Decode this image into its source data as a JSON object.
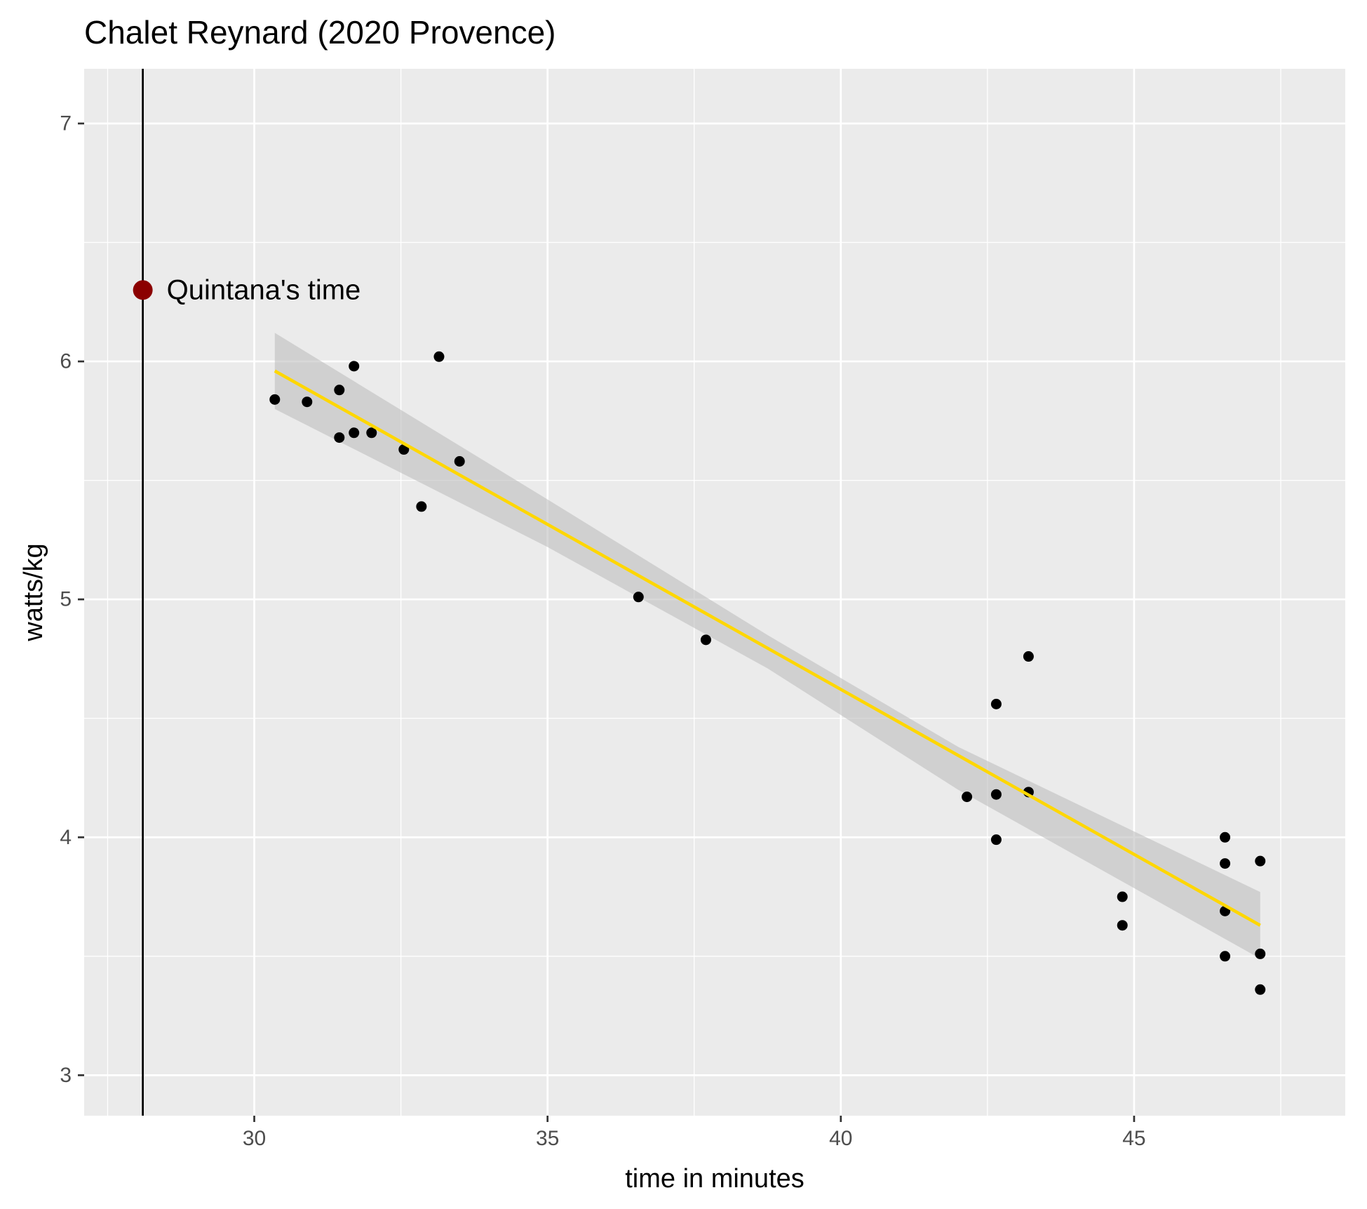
{
  "chart_data": {
    "type": "scatter",
    "title": "Chalet Reynard (2020 Provence)",
    "xlabel": "time in minutes",
    "ylabel": "watts/kg",
    "xlim": [
      27.1,
      48.6
    ],
    "ylim": [
      2.83,
      7.23
    ],
    "x_ticks": [
      30,
      35,
      40,
      45
    ],
    "y_ticks": [
      3,
      4,
      5,
      6,
      7
    ],
    "grid": true,
    "legend": "none",
    "colors": {
      "panel": "#EBEBEB",
      "grid": "#FFFFFF",
      "points": "#000000",
      "fit_line": "#FFD700",
      "ci_band": "#BEBEBE",
      "highlight": "#8B0000",
      "vline": "#000000"
    },
    "points": [
      {
        "x": 30.35,
        "y": 5.84
      },
      {
        "x": 30.9,
        "y": 5.83
      },
      {
        "x": 31.45,
        "y": 5.88
      },
      {
        "x": 31.45,
        "y": 5.68
      },
      {
        "x": 31.7,
        "y": 5.98
      },
      {
        "x": 31.7,
        "y": 5.7
      },
      {
        "x": 32.0,
        "y": 5.7
      },
      {
        "x": 32.55,
        "y": 5.63
      },
      {
        "x": 32.85,
        "y": 5.39
      },
      {
        "x": 33.15,
        "y": 6.02
      },
      {
        "x": 33.5,
        "y": 5.58
      },
      {
        "x": 36.55,
        "y": 5.01
      },
      {
        "x": 37.7,
        "y": 4.83
      },
      {
        "x": 42.15,
        "y": 4.17
      },
      {
        "x": 42.65,
        "y": 4.56
      },
      {
        "x": 42.65,
        "y": 4.18
      },
      {
        "x": 42.65,
        "y": 3.99
      },
      {
        "x": 43.2,
        "y": 4.76
      },
      {
        "x": 43.2,
        "y": 4.19
      },
      {
        "x": 44.8,
        "y": 3.75
      },
      {
        "x": 44.8,
        "y": 3.63
      },
      {
        "x": 46.55,
        "y": 4.0
      },
      {
        "x": 46.55,
        "y": 3.89
      },
      {
        "x": 46.55,
        "y": 3.69
      },
      {
        "x": 46.55,
        "y": 3.5
      },
      {
        "x": 47.15,
        "y": 3.9
      },
      {
        "x": 47.15,
        "y": 3.51
      },
      {
        "x": 47.15,
        "y": 3.36
      }
    ],
    "fit_line": {
      "x": [
        30.35,
        47.15
      ],
      "y": [
        5.96,
        3.63
      ]
    },
    "confidence_band": [
      {
        "x": 30.35,
        "lower": 5.8,
        "upper": 6.12
      },
      {
        "x": 35.0,
        "lower": 5.22,
        "upper": 5.42
      },
      {
        "x": 38.75,
        "lower": 4.71,
        "upper": 4.85
      },
      {
        "x": 42.0,
        "lower": 4.2,
        "upper": 4.38
      },
      {
        "x": 47.15,
        "lower": 3.49,
        "upper": 3.77
      }
    ],
    "reference": {
      "x": 28.1,
      "y": 6.3,
      "label": "Quintana's time"
    }
  }
}
